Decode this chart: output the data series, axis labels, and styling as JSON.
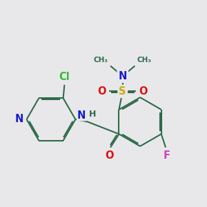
{
  "background_color": "#e8e8ea",
  "bond_color": "#2d6b4a",
  "bond_width": 1.5,
  "figsize": [
    3.0,
    3.0
  ],
  "dpi": 100,
  "colors": {
    "N": "#1a1acc",
    "O": "#dd1111",
    "S": "#ccaa00",
    "F": "#cc44bb",
    "Cl": "#33bb33",
    "C": "#2d6b4a",
    "H": "#2d6b4a"
  }
}
